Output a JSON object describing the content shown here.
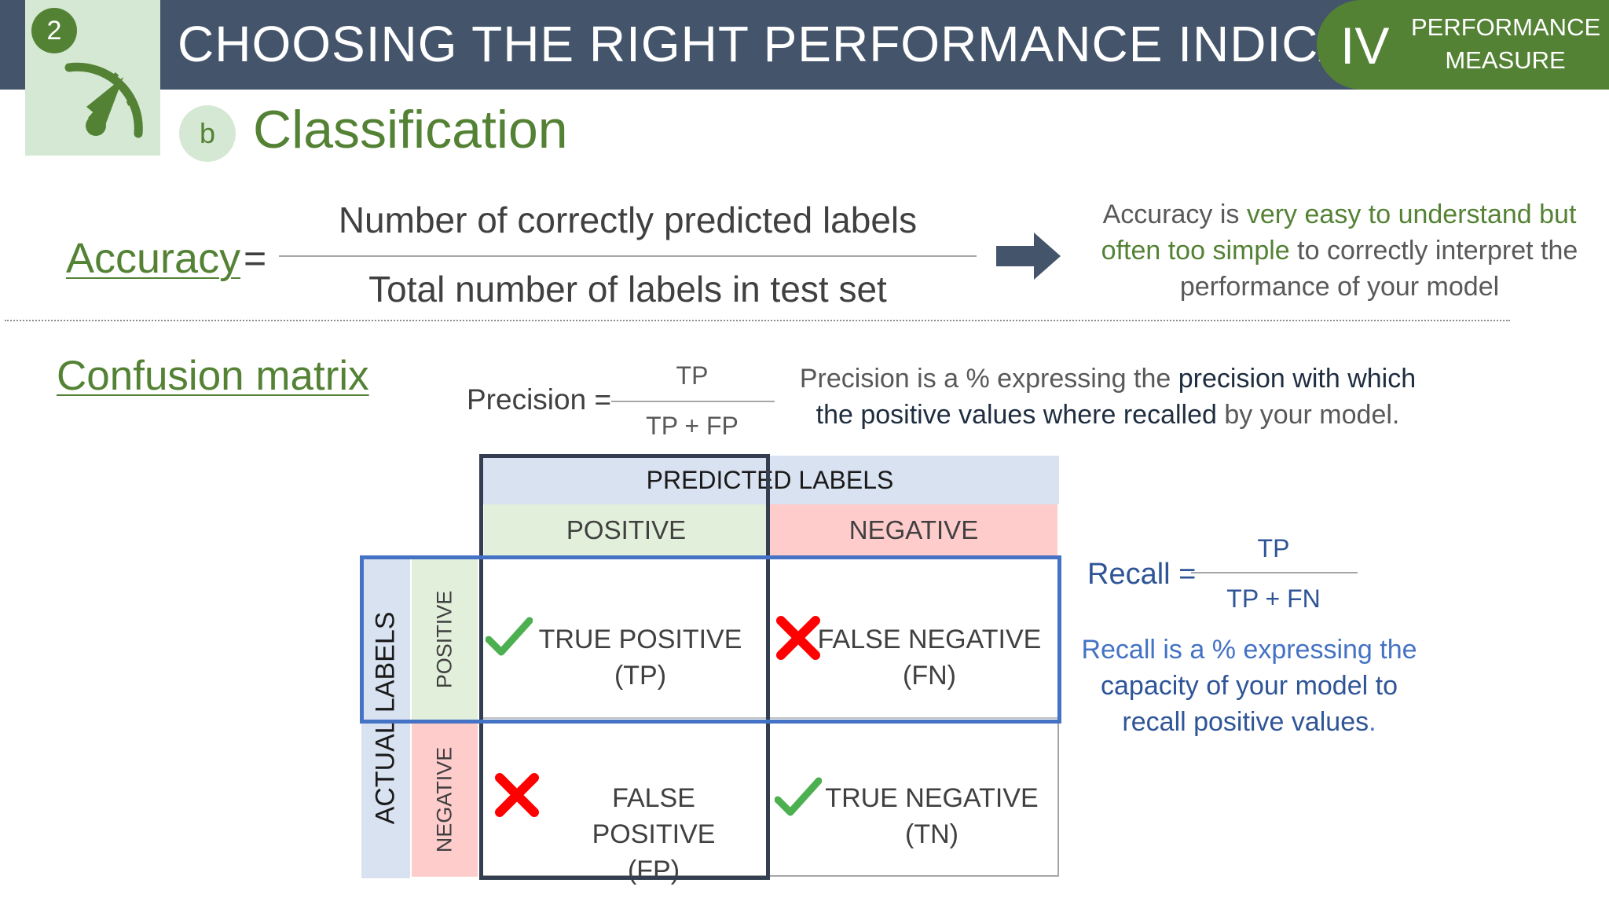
{
  "header": {
    "step_number": "2",
    "title": "CHOOSING THE RIGHT PERFORMANCE INDICATOR",
    "section_roman": "IV",
    "section_label_line1": "PERFORMANCE",
    "section_label_line2": "MEASURE"
  },
  "subtitle": {
    "letter": "b",
    "text": "Classification"
  },
  "accuracy": {
    "label": "Accuracy",
    "equals": "=",
    "numerator": "Number of correctly predicted labels",
    "denominator": "Total number of labels in test set",
    "note_1": "Accuracy is ",
    "note_2": "very easy to understand but often too simple",
    "note_3": " to correctly interpret the performance of your model"
  },
  "confusion": {
    "title": "Confusion matrix",
    "predicted_header": "PREDICTED LABELS",
    "actual_header": "ACTUAL LABELS",
    "col_positive": "POSITIVE",
    "col_negative": "NEGATIVE",
    "row_positive": "POSITIVE",
    "row_negative": "NEGATIVE",
    "tp_1": "TRUE POSITIVE",
    "tp_2": "(TP)",
    "fn_1": "FALSE NEGATIVE",
    "fn_2": "(FN)",
    "fp_1": "FALSE POSITIVE",
    "fp_2": "(FP)",
    "tn_1": "TRUE NEGATIVE",
    "tn_2": "(TN)"
  },
  "precision": {
    "label": "Precision =",
    "numerator": "TP",
    "denominator": "TP + FP",
    "note_1": "Precision is a % expressing the ",
    "note_2": "precision with which the positive values where recalled",
    "note_3": " by your model."
  },
  "recall": {
    "label": "Recall =",
    "numerator": "TP",
    "denominator": "TP + FN",
    "note_1": "Recall is a % expressing the ",
    "note_2": "capacity of your model to recall positive values",
    "note_3": "."
  },
  "colors": {
    "header_bg": "#44546a",
    "accent_green": "#548235",
    "light_green": "#d5e8d4",
    "recall_blue": "#4472c4",
    "check_green": "#4caf50",
    "cross_red": "#ff0000"
  },
  "icons": [
    "gauge-icon",
    "arrow-right-icon",
    "checkmark-icon",
    "cross-icon"
  ]
}
